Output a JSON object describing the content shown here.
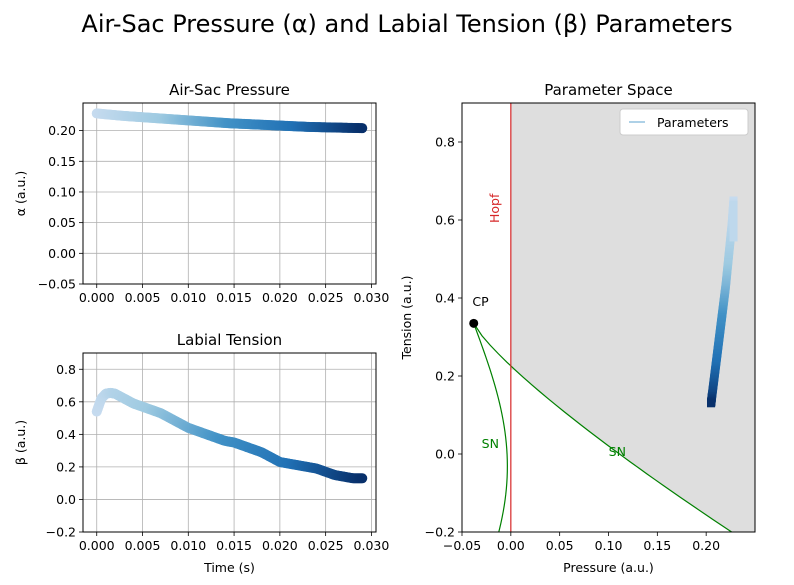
{
  "suptitle": "Air-Sac Pressure (α) and Labial Tension (β) Parameters",
  "chart_data": [
    {
      "type": "scatter",
      "title": "Air-Sac Pressure",
      "xlabel": "",
      "ylabel": "α (a.u.)",
      "xlim": [
        -0.0015,
        0.0305
      ],
      "ylim": [
        -0.05,
        0.245
      ],
      "xticks": [
        "0.000",
        "0.005",
        "0.010",
        "0.015",
        "0.020",
        "0.025",
        "0.030"
      ],
      "yticks": [
        "−0.05",
        "0.00",
        "0.05",
        "0.10",
        "0.15",
        "0.20"
      ],
      "grid": true,
      "colormap": "Blues",
      "x": [
        0.0,
        0.0029,
        0.0058,
        0.0087,
        0.0116,
        0.0145,
        0.0174,
        0.0203,
        0.0232,
        0.0261,
        0.029
      ],
      "y": [
        0.228,
        0.224,
        0.221,
        0.218,
        0.215,
        0.212,
        0.21,
        0.208,
        0.206,
        0.205,
        0.204
      ]
    },
    {
      "type": "scatter",
      "title": "Labial Tension",
      "xlabel": "Time (s)",
      "ylabel": "β (a.u.)",
      "xlim": [
        -0.0015,
        0.0305
      ],
      "ylim": [
        -0.2,
        0.9
      ],
      "xticks": [
        "0.000",
        "0.005",
        "0.010",
        "0.015",
        "0.020",
        "0.025",
        "0.030"
      ],
      "yticks": [
        "−0.2",
        "0.0",
        "0.2",
        "0.4",
        "0.6",
        "0.8"
      ],
      "grid": true,
      "colormap": "Blues",
      "x": [
        0.0,
        0.0005,
        0.001,
        0.0015,
        0.002,
        0.003,
        0.004,
        0.005,
        0.006,
        0.007,
        0.008,
        0.009,
        0.01,
        0.011,
        0.012,
        0.013,
        0.014,
        0.015,
        0.016,
        0.017,
        0.018,
        0.019,
        0.02,
        0.021,
        0.022,
        0.023,
        0.024,
        0.025,
        0.026,
        0.027,
        0.028,
        0.029
      ],
      "y": [
        0.54,
        0.62,
        0.65,
        0.655,
        0.65,
        0.62,
        0.59,
        0.57,
        0.55,
        0.53,
        0.5,
        0.47,
        0.44,
        0.42,
        0.4,
        0.38,
        0.36,
        0.35,
        0.33,
        0.31,
        0.29,
        0.26,
        0.23,
        0.22,
        0.21,
        0.2,
        0.19,
        0.17,
        0.15,
        0.14,
        0.13,
        0.13
      ]
    },
    {
      "type": "line",
      "title": "Parameter Space",
      "xlabel": "Pressure (a.u.)",
      "ylabel": "Tension (a.u.)",
      "xlim": [
        -0.05,
        0.25
      ],
      "ylim": [
        -0.2,
        0.9
      ],
      "xticks": [
        "−0.05",
        "0.00",
        "0.05",
        "0.10",
        "0.15",
        "0.20"
      ],
      "yticks": [
        "−0.2",
        "0.0",
        "0.2",
        "0.4",
        "0.6",
        "0.8"
      ],
      "grid": false,
      "legend": {
        "position": "top-right",
        "entries": [
          "Parameters"
        ]
      },
      "annotations": {
        "hopf": "Hopf",
        "cp": "CP",
        "sn_left": "SN",
        "sn_right": "SN"
      },
      "cusp_point": [
        -0.038,
        0.335
      ],
      "hopf_x": 0.0,
      "colors": {
        "hopf": "#d62728",
        "sn": "#008000",
        "shade": "#dedede"
      },
      "series": [
        {
          "name": "Parameters",
          "x": [
            0.228,
            0.226,
            0.224,
            0.222,
            0.22,
            0.218,
            0.216,
            0.214,
            0.212,
            0.21,
            0.208,
            0.206,
            0.205
          ],
          "y": [
            0.65,
            0.58,
            0.53,
            0.48,
            0.43,
            0.39,
            0.35,
            0.31,
            0.27,
            0.23,
            0.19,
            0.15,
            0.13
          ]
        }
      ]
    }
  ]
}
